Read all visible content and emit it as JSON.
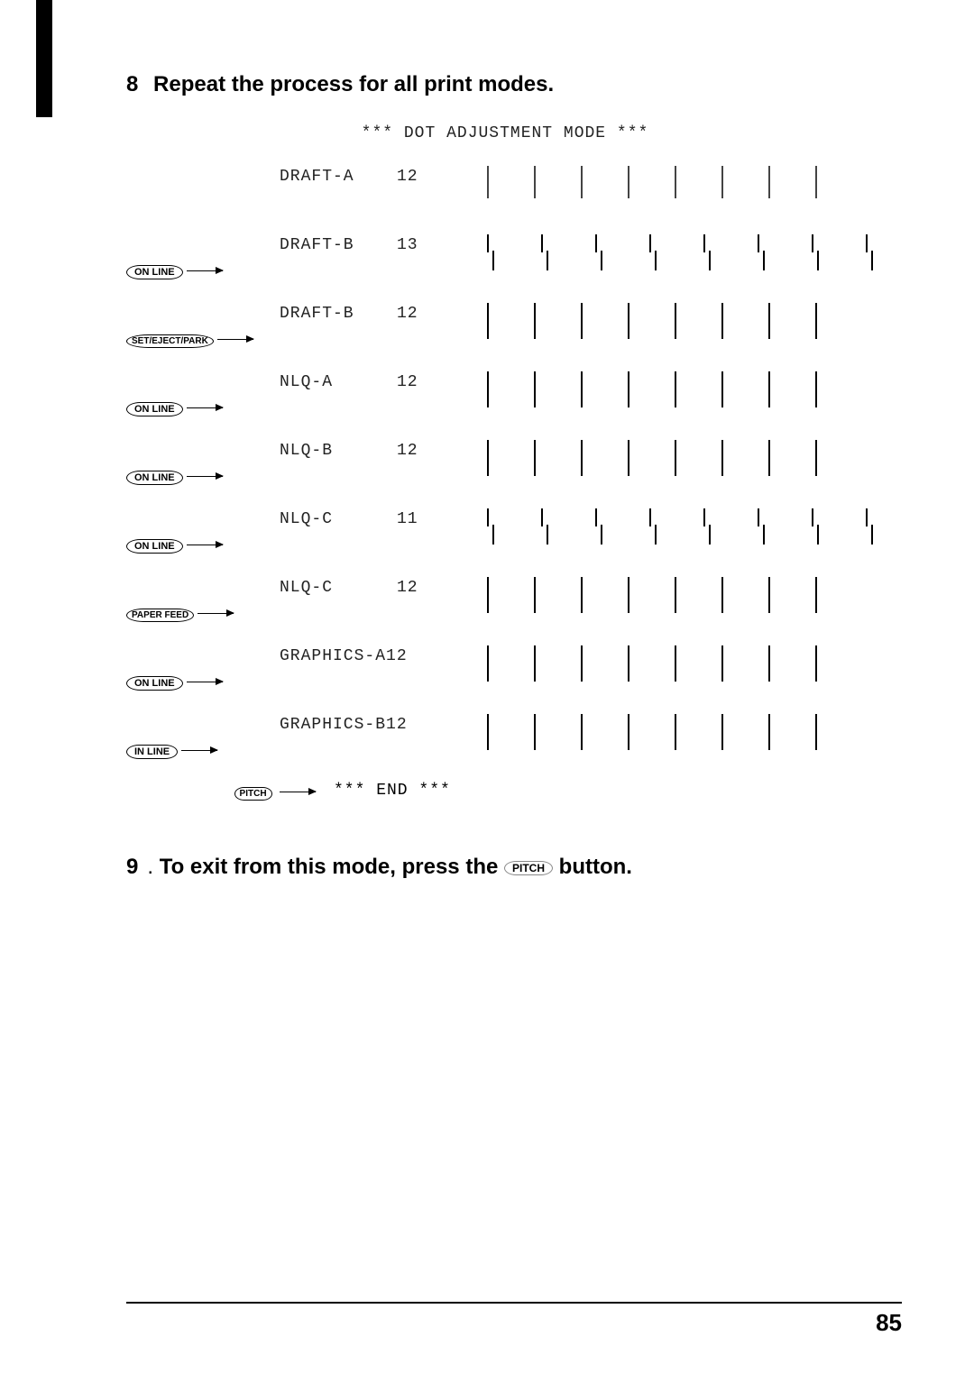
{
  "step8": {
    "num": "8",
    "text": "Repeat the process for all print modes."
  },
  "diagram": {
    "title": "*** DOT ADJUSTMENT MODE ***",
    "end": "*** END ***"
  },
  "rows": [
    {
      "button": "",
      "mode": "DRAFT-A",
      "val": "12",
      "bars": "light"
    },
    {
      "button": "ON LINE",
      "mode": "DRAFT-B",
      "val": "13",
      "bars": "split"
    },
    {
      "button": "SET/EJECT/PARK",
      "mode": "DRAFT-B",
      "val": "12",
      "bars": "solid"
    },
    {
      "button": "ON LINE",
      "mode": "NLQ-A",
      "val": "12",
      "bars": "solid"
    },
    {
      "button": "ON LINE",
      "mode": "NLQ-B",
      "val": "12",
      "bars": "solid"
    },
    {
      "button": "ON LINE",
      "mode": "NLQ-C",
      "val": "11",
      "bars": "split"
    },
    {
      "button": "PAPER FEED",
      "mode": "NLQ-C",
      "val": "12",
      "bars": "solid"
    },
    {
      "button": "ON LINE",
      "mode": "GRAPHICS-A12",
      "val": "",
      "bars": "solid"
    },
    {
      "button": "IN LINE",
      "mode": "GRAPHICS-B12",
      "val": "",
      "bars": "solid"
    }
  ],
  "endButton": "PITCH",
  "step9": {
    "num": "9",
    "text1": "To exit from this mode, press the",
    "btn": "PITCH",
    "text2": "button."
  },
  "pageNumber": "85"
}
